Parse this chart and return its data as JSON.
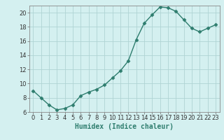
{
  "x": [
    0,
    1,
    2,
    3,
    4,
    5,
    6,
    7,
    8,
    9,
    10,
    11,
    12,
    13,
    14,
    15,
    16,
    17,
    18,
    19,
    20,
    21,
    22,
    23
  ],
  "y": [
    9.0,
    8.0,
    7.0,
    6.3,
    6.5,
    7.0,
    8.3,
    8.8,
    9.2,
    9.8,
    10.8,
    11.8,
    13.2,
    16.2,
    18.5,
    19.7,
    20.8,
    20.7,
    20.2,
    19.0,
    17.8,
    17.3,
    17.8,
    18.3
  ],
  "xlabel": "Humidex (Indice chaleur)",
  "ylim": [
    6,
    21
  ],
  "xlim": [
    -0.5,
    23.5
  ],
  "yticks": [
    6,
    8,
    10,
    12,
    14,
    16,
    18,
    20
  ],
  "xticks": [
    0,
    1,
    2,
    3,
    4,
    5,
    6,
    7,
    8,
    9,
    10,
    11,
    12,
    13,
    14,
    15,
    16,
    17,
    18,
    19,
    20,
    21,
    22,
    23
  ],
  "line_color": "#2e7d6e",
  "marker": "D",
  "marker_size": 2.5,
  "bg_color": "#d4f0f0",
  "grid_color": "#b0d4d4",
  "tick_fontsize": 6.0,
  "xlabel_fontsize": 7.0
}
